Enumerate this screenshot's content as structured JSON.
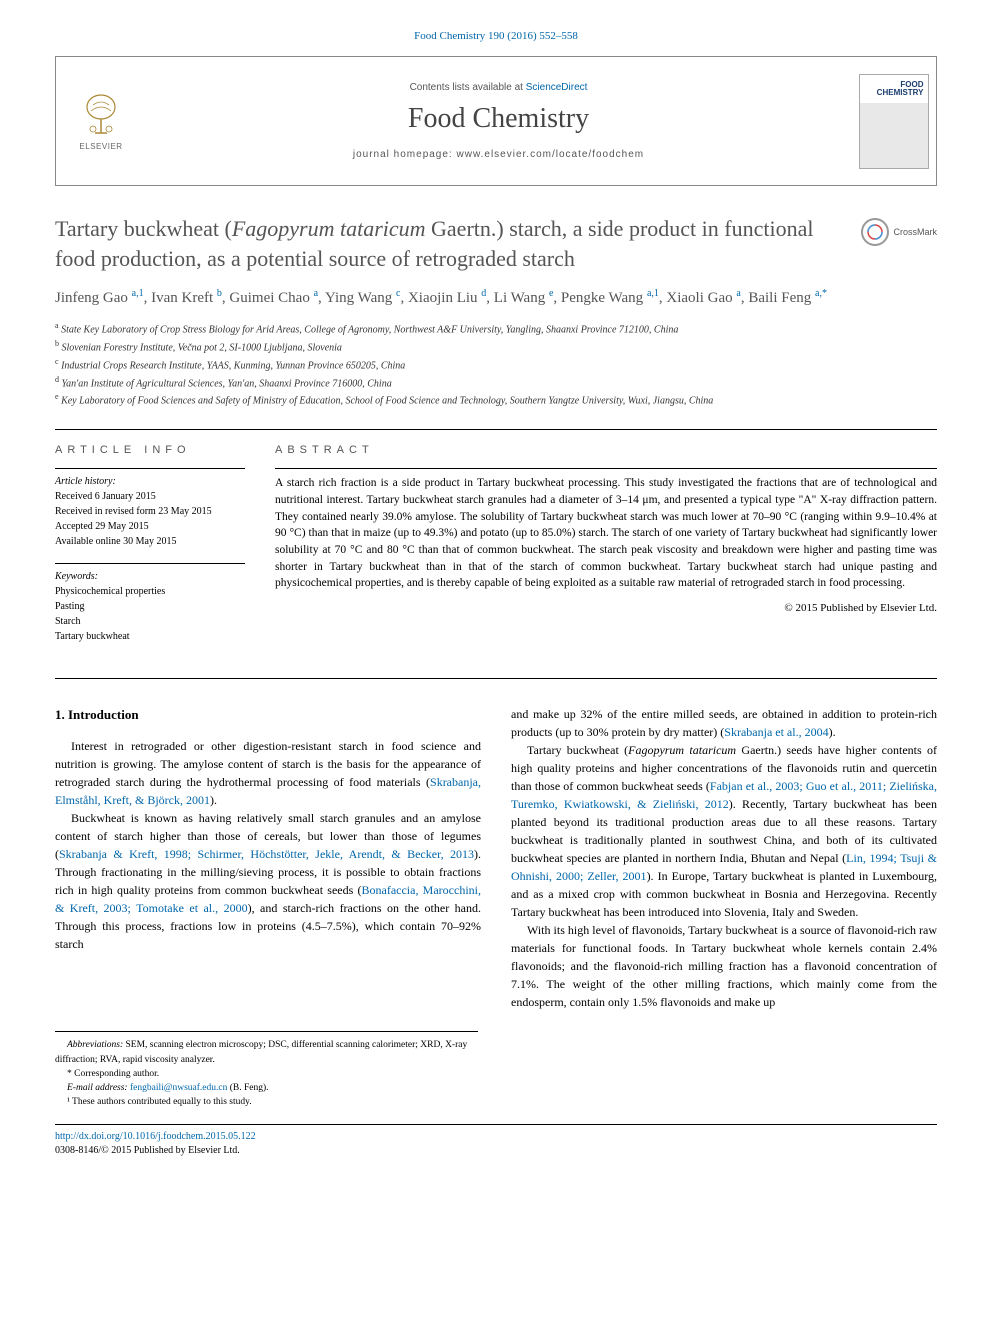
{
  "citation": "Food Chemistry 190 (2016) 552–558",
  "header": {
    "elsevier_label": "ELSEVIER",
    "contents_prefix": "Contents lists available at ",
    "contents_link": "ScienceDirect",
    "journal": "Food Chemistry",
    "homepage_prefix": "journal homepage: ",
    "homepage_url": "www.elsevier.com/locate/foodchem",
    "cover_title_line1": "FOOD",
    "cover_title_line2": "CHEMISTRY"
  },
  "crossmark": "CrossMark",
  "title_html": "Tartary buckwheat (<em>Fagopyrum tataricum</em> Gaertn.) starch, a side product in functional food production, as a potential source of retrograded starch",
  "authors_html": "Jinfeng Gao <sup>a,1</sup>, Ivan Kreft <sup>b</sup>, Guimei Chao <sup>a</sup>, Ying Wang <sup>c</sup>, Xiaojin Liu <sup>d</sup>, Li Wang <sup>e</sup>, Pengke Wang <sup>a,1</sup>, Xiaoli Gao <sup>a</sup>, Baili Feng <sup>a,*</sup>",
  "affiliations": [
    {
      "sup": "a",
      "text": "State Key Laboratory of Crop Stress Biology for Arid Areas, College of Agronomy, Northwest A&F University, Yangling, Shaanxi Province 712100, China"
    },
    {
      "sup": "b",
      "text": "Slovenian Forestry Institute, Večna pot 2, SI-1000 Ljubljana, Slovenia"
    },
    {
      "sup": "c",
      "text": "Industrial Crops Research Institute, YAAS, Kunming, Yunnan Province 650205, China"
    },
    {
      "sup": "d",
      "text": "Yan'an Institute of Agricultural Sciences, Yan'an, Shaanxi Province 716000, China"
    },
    {
      "sup": "e",
      "text": "Key Laboratory of Food Sciences and Safety of Ministry of Education, School of Food Science and Technology, Southern Yangtze University, Wuxi, Jiangsu, China"
    }
  ],
  "info": {
    "heading": "ARTICLE INFO",
    "history_label": "Article history:",
    "history": [
      "Received 6 January 2015",
      "Received in revised form 23 May 2015",
      "Accepted 29 May 2015",
      "Available online 30 May 2015"
    ],
    "keywords_label": "Keywords:",
    "keywords": [
      "Physicochemical properties",
      "Pasting",
      "Starch",
      "Tartary buckwheat"
    ]
  },
  "abstract": {
    "heading": "ABSTRACT",
    "text": "A starch rich fraction is a side product in Tartary buckwheat processing. This study investigated the fractions that are of technological and nutritional interest. Tartary buckwheat starch granules had a diameter of 3–14 μm, and presented a typical type \"A\" X-ray diffraction pattern. They contained nearly 39.0% amylose. The solubility of Tartary buckwheat starch was much lower at 70–90 °C (ranging within 9.9–10.4% at 90 °C) than that in maize (up to 49.3%) and potato (up to 85.0%) starch. The starch of one variety of Tartary buckwheat had significantly lower solubility at 70 °C and 80 °C than that of common buckwheat. The starch peak viscosity and breakdown were higher and pasting time was shorter in Tartary buckwheat than in that of the starch of common buckwheat. Tartary buckwheat starch had unique pasting and physicochemical properties, and is thereby capable of being exploited as a suitable raw material of retrograded starch in food processing.",
    "copyright": "© 2015 Published by Elsevier Ltd."
  },
  "body": {
    "intro_heading": "1. Introduction",
    "left_paras": [
      "Interest in retrograded or other digestion-resistant starch in food science and nutrition is growing. The amylose content of starch is the basis for the appearance of retrograded starch during the hydrothermal processing of food materials (<span class=\"ref-link\">Skrabanja, Elmståhl, Kreft, & Björck, 2001</span>).",
      "Buckwheat is known as having relatively small starch granules and an amylose content of starch higher than those of cereals, but lower than those of legumes (<span class=\"ref-link\">Skrabanja & Kreft, 1998; Schirmer, Höchstötter, Jekle, Arendt, & Becker, 2013</span>). Through fractionating in the milling/sieving process, it is possible to obtain fractions rich in high quality proteins from common buckwheat seeds (<span class=\"ref-link\">Bonafaccia, Marocchini, & Kreft, 2003; Tomotake et al., 2000</span>), and starch-rich fractions on the other hand. Through this process, fractions low in proteins (4.5–7.5%), which contain 70–92% starch"
    ],
    "right_paras": [
      "and make up 32% of the entire milled seeds, are obtained in addition to protein-rich products (up to 30% protein by dry matter) (<span class=\"ref-link\">Skrabanja et al., 2004</span>).",
      "Tartary buckwheat (<em>Fagopyrum tataricum</em> Gaertn.) seeds have higher contents of high quality proteins and higher concentrations of the flavonoids rutin and quercetin than those of common buckwheat seeds (<span class=\"ref-link\">Fabjan et al., 2003; Guo et al., 2011; Zielińska, Turemko, Kwiatkowski, & Zieliński, 2012</span>). Recently, Tartary buckwheat has been planted beyond its traditional production areas due to all these reasons. Tartary buckwheat is traditionally planted in southwest China, and both of its cultivated buckwheat species are planted in northern India, Bhutan and Nepal (<span class=\"ref-link\">Lin, 1994; Tsuji & Ohnishi, 2000; Zeller, 2001</span>). In Europe, Tartary buckwheat is planted in Luxembourg, and as a mixed crop with common buckwheat in Bosnia and Herzegovina. Recently Tartary buckwheat has been introduced into Slovenia, Italy and Sweden.",
      "With its high level of flavonoids, Tartary buckwheat is a source of flavonoid-rich raw materials for functional foods. In Tartary buckwheat whole kernels contain 2.4% flavonoids; and the flavonoid-rich milling fraction has a flavonoid concentration of 7.1%. The weight of the other milling fractions, which mainly come from the endosperm, contain only 1.5% flavonoids and make up"
    ]
  },
  "footnotes": {
    "abbrev_label": "Abbreviations:",
    "abbrev_text": " SEM, scanning electron microscopy; DSC, differential scanning calorimeter; XRD, X-ray diffraction; RVA, rapid viscosity analyzer.",
    "corr": "* Corresponding author.",
    "email_label": "E-mail address: ",
    "email": "fengbaili@nwsuaf.edu.cn",
    "email_suffix": " (B. Feng).",
    "contrib": "¹ These authors contributed equally to this study."
  },
  "footer": {
    "doi": "http://dx.doi.org/10.1016/j.foodchem.2015.05.122",
    "issn": "0308-8146/© 2015 Published by Elsevier Ltd."
  },
  "colors": {
    "link": "#0066aa",
    "heading_gray": "#555555",
    "cover_blue": "#1a3d6d"
  }
}
